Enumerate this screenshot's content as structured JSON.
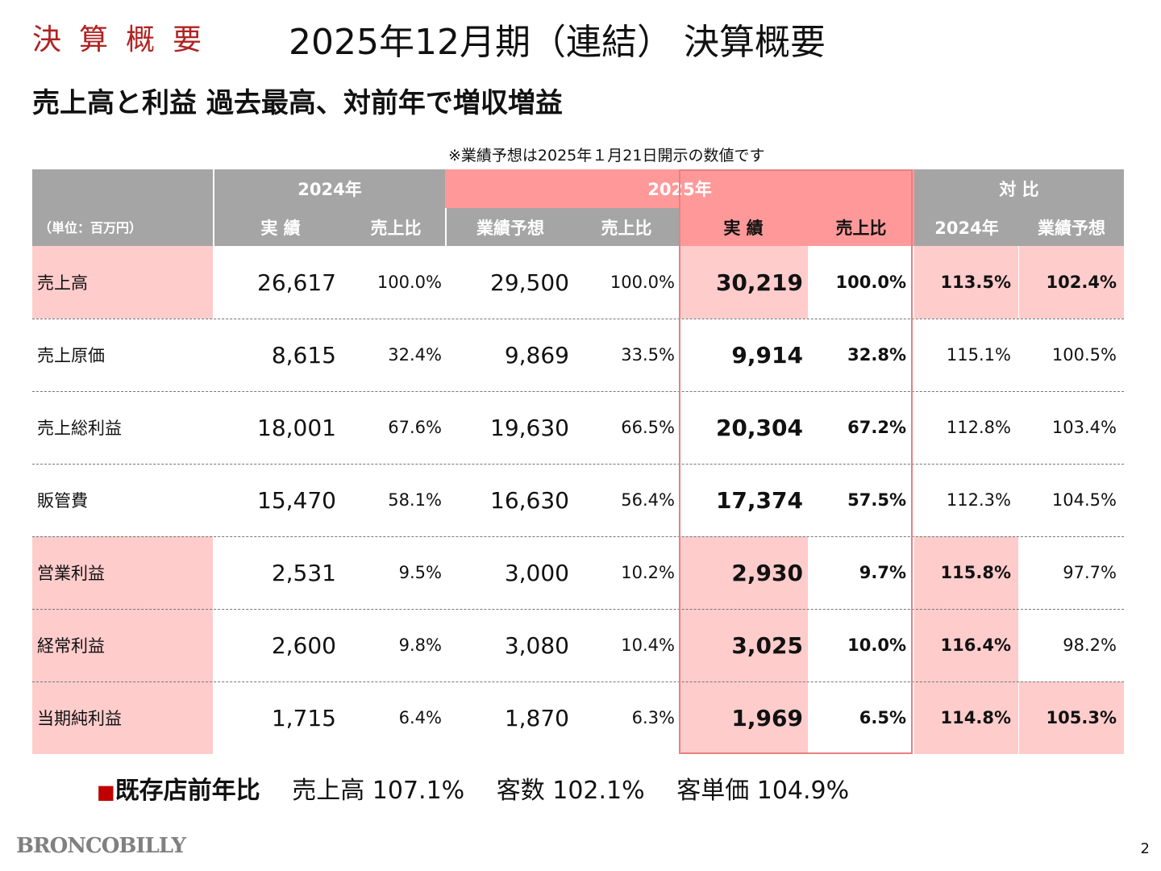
{
  "section_label": "決算概要",
  "title": "2025年12月期（連結） 決算概要",
  "subtitle": "売上高と利益 過去最高、対前年で増収増益",
  "note": "※業績予想は2025年１月21日開示の数値です",
  "table": {
    "unit": "（単位：百万円）",
    "groups": {
      "y2024": "2024年",
      "y2025": "2025年",
      "compare": "対 比"
    },
    "subheaders": {
      "actual_2024": "実 績",
      "ratio_2024": "売上比",
      "forecast": "業績予想",
      "ratio_forecast": "売上比",
      "actual_2025": "実 績",
      "ratio_2025": "売上比",
      "vs_2024": "2024年",
      "vs_forecast": "業績予想"
    },
    "rows": [
      {
        "label": "売上高",
        "a2024": "26,617",
        "r2024": "100.0%",
        "fc": "29,500",
        "rfc": "100.0%",
        "a2025": "30,219",
        "r2025": "100.0%",
        "v2024": "113.5%",
        "vfc": "102.4%"
      },
      {
        "label": "売上原価",
        "a2024": "8,615",
        "r2024": "32.4%",
        "fc": "9,869",
        "rfc": "33.5%",
        "a2025": "9,914",
        "r2025": "32.8%",
        "v2024": "115.1%",
        "vfc": "100.5%"
      },
      {
        "label": "売上総利益",
        "a2024": "18,001",
        "r2024": "67.6%",
        "fc": "19,630",
        "rfc": "66.5%",
        "a2025": "20,304",
        "r2025": "67.2%",
        "v2024": "112.8%",
        "vfc": "103.4%"
      },
      {
        "label": "販管費",
        "a2024": "15,470",
        "r2024": "58.1%",
        "fc": "16,630",
        "rfc": "56.4%",
        "a2025": "17,374",
        "r2025": "57.5%",
        "v2024": "112.3%",
        "vfc": "104.5%"
      },
      {
        "label": "営業利益",
        "a2024": "2,531",
        "r2024": "9.5%",
        "fc": "3,000",
        "rfc": "10.2%",
        "a2025": "2,930",
        "r2025": "9.7%",
        "v2024": "115.8%",
        "vfc": "97.7%"
      },
      {
        "label": "経常利益",
        "a2024": "2,600",
        "r2024": "9.8%",
        "fc": "3,080",
        "rfc": "10.4%",
        "a2025": "3,025",
        "r2025": "10.0%",
        "v2024": "116.4%",
        "vfc": "98.2%"
      },
      {
        "label": "当期純利益",
        "a2024": "1,715",
        "r2024": "6.4%",
        "fc": "1,870",
        "rfc": "6.3%",
        "a2025": "1,969",
        "r2025": "6.5%",
        "v2024": "114.8%",
        "vfc": "105.3%"
      }
    ]
  },
  "footer": {
    "bullet": "■",
    "heading": "既存店前年比",
    "items": [
      "売上高 107.1%",
      "客数 102.1%",
      "客単価 104.9%"
    ]
  },
  "logo": "BRONCOBILLY",
  "page_number": "2",
  "colors": {
    "header_gray": "#a5a5a5",
    "header_pink": "#ff9999",
    "highlight_pink": "#ffcccc",
    "accent_red": "#b22222"
  }
}
